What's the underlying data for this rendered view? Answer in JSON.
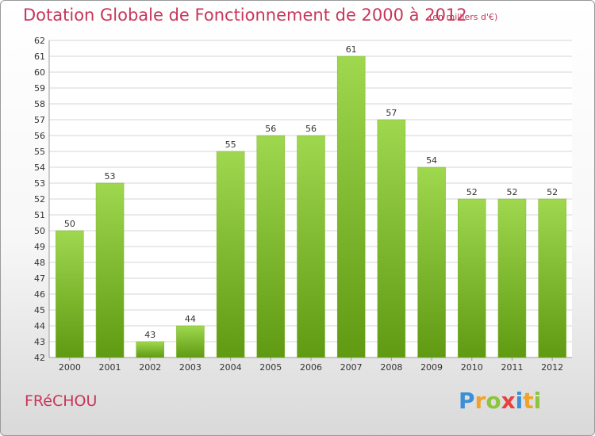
{
  "header": {
    "title": "Dotation Globale de Fonctionnement de 2000 à 2012",
    "unit": "(en milliers d'€)"
  },
  "footer": {
    "commune": "FRéCHOU",
    "logo": [
      "P",
      "r",
      "o",
      "x",
      "i",
      "t",
      "i"
    ]
  },
  "chart_data": {
    "type": "bar",
    "title": "Dotation Globale de Fonctionnement de 2000 à 2012",
    "xlabel": "",
    "ylabel": "",
    "categories": [
      "2000",
      "2001",
      "2002",
      "2003",
      "2004",
      "2005",
      "2006",
      "2007",
      "2008",
      "2009",
      "2010",
      "2011",
      "2012"
    ],
    "values": [
      50,
      53,
      43,
      44,
      55,
      56,
      56,
      61,
      57,
      54,
      52,
      52,
      52
    ],
    "ylim": [
      42,
      62
    ],
    "yticks": [
      42,
      43,
      44,
      45,
      46,
      47,
      48,
      49,
      50,
      51,
      52,
      53,
      54,
      55,
      56,
      57,
      58,
      59,
      60,
      61,
      62
    ],
    "grid": true,
    "colors": {
      "bar_light": "#9fd84f",
      "bar_dark": "#5f9a12",
      "grid": "#d6d6d6"
    }
  }
}
